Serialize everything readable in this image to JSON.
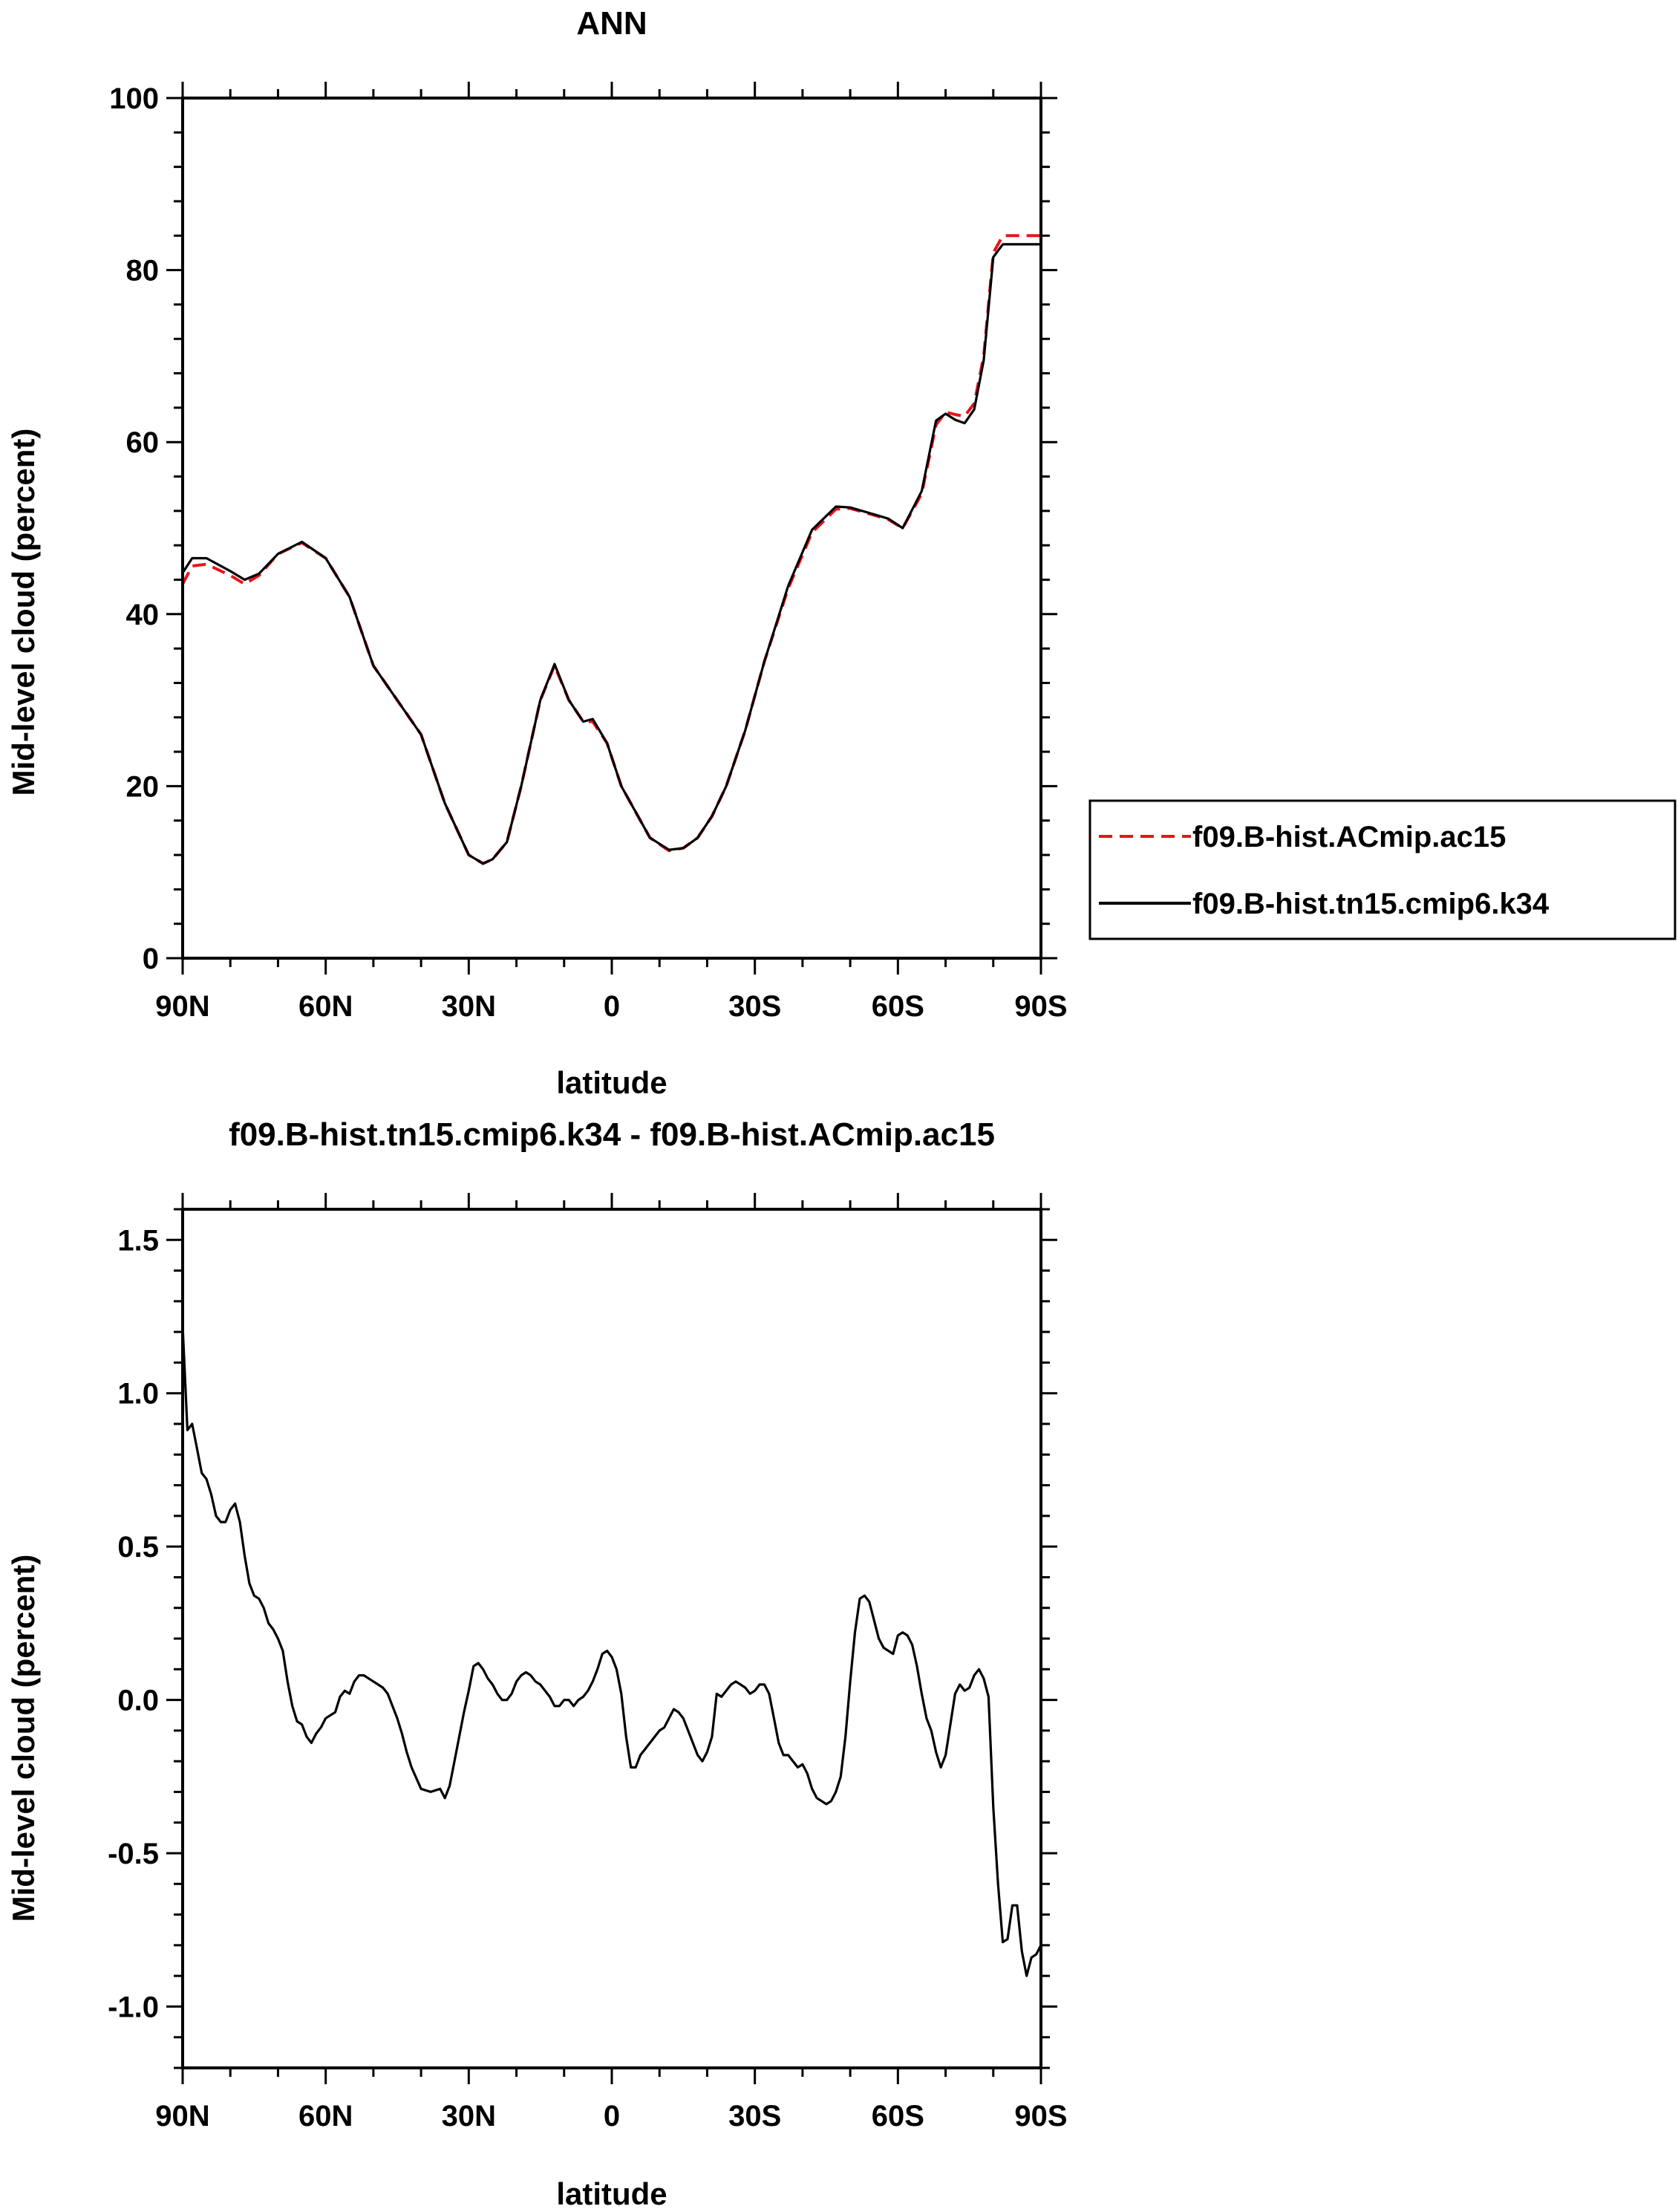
{
  "chart_data": [
    {
      "type": "line",
      "title": "ANN",
      "xlabel": "latitude",
      "ylabel": "Mid-level cloud (percent)",
      "xlim": [
        90,
        -90
      ],
      "ylim": [
        0,
        100
      ],
      "x_ticks": [
        {
          "value": 90,
          "label": "90N"
        },
        {
          "value": 60,
          "label": "60N"
        },
        {
          "value": 30,
          "label": "30N"
        },
        {
          "value": 0,
          "label": "0"
        },
        {
          "value": -30,
          "label": "30S"
        },
        {
          "value": -60,
          "label": "60S"
        },
        {
          "value": -90,
          "label": "90S"
        }
      ],
      "y_ticks": [
        {
          "value": 0,
          "label": "0"
        },
        {
          "value": 20,
          "label": "20"
        },
        {
          "value": 40,
          "label": "40"
        },
        {
          "value": 60,
          "label": "60"
        },
        {
          "value": 80,
          "label": "80"
        },
        {
          "value": 100,
          "label": "100"
        }
      ],
      "series": [
        {
          "name": "f09.B-hist.ACmip.ac15",
          "color": "#e8141b",
          "dash": "dashed",
          "x": [
            90,
            88,
            85,
            80,
            77,
            74,
            70,
            65,
            60,
            55,
            50,
            45,
            40,
            35,
            30,
            27,
            25,
            22,
            19,
            15,
            12,
            9,
            6,
            4,
            1,
            -2,
            -5,
            -8,
            -12,
            -15,
            -18,
            -21,
            -24,
            -28,
            -32,
            -37,
            -42,
            -47,
            -50,
            -55,
            -58,
            -61,
            -65,
            -68,
            -70,
            -72,
            -74,
            -76,
            -78,
            -80,
            -82,
            -84,
            -86,
            -88,
            -90
          ],
          "values": [
            43.5,
            45.6,
            45.8,
            44.5,
            43.5,
            44.5,
            47,
            48.3,
            46.5,
            42,
            34,
            30,
            26,
            18,
            12,
            11,
            11.5,
            13.5,
            20,
            30,
            34,
            30,
            27.5,
            27.5,
            25,
            20,
            17,
            14,
            12.5,
            12.8,
            14,
            16.5,
            20,
            26.5,
            34.5,
            43,
            49.5,
            52.2,
            52.3,
            51.5,
            51,
            50,
            54,
            62,
            63.5,
            63.2,
            63,
            64.5,
            70,
            82,
            84,
            84,
            84,
            84,
            84
          ]
        },
        {
          "name": "f09.B-hist.tn15.cmip6.k34",
          "color": "#000000",
          "dash": "solid",
          "x": [
            90,
            88,
            85,
            80,
            77,
            74,
            70,
            65,
            60,
            55,
            50,
            45,
            40,
            35,
            30,
            27,
            25,
            22,
            19,
            15,
            12,
            9,
            6,
            4,
            1,
            -2,
            -5,
            -8,
            -12,
            -15,
            -18,
            -21,
            -24,
            -28,
            -32,
            -37,
            -42,
            -47,
            -50,
            -55,
            -58,
            -61,
            -65,
            -68,
            -70,
            -72,
            -74,
            -76,
            -78,
            -80,
            -82,
            -84,
            -86,
            -88,
            -90
          ],
          "values": [
            44.8,
            46.5,
            46.5,
            45,
            44,
            44.7,
            47,
            48.4,
            46.5,
            42,
            34,
            30,
            26,
            18,
            12,
            11,
            11.5,
            13.5,
            20,
            30,
            34.2,
            30,
            27.5,
            27.8,
            25,
            20,
            17,
            14,
            12.6,
            12.8,
            14,
            16.5,
            20,
            26.5,
            34.5,
            43.3,
            49.8,
            52.5,
            52.4,
            51.6,
            51.1,
            50,
            54.3,
            62.5,
            63.3,
            62.6,
            62.2,
            63.8,
            69.5,
            81.5,
            83,
            83,
            83,
            83,
            83
          ]
        }
      ],
      "legend": {
        "placement": "right",
        "entries": [
          "f09.B-hist.ACmip.ac15",
          "f09.B-hist.tn15.cmip6.k34"
        ]
      }
    },
    {
      "type": "line",
      "title": "f09.B-hist.tn15.cmip6.k34 - f09.B-hist.ACmip.ac15",
      "xlabel": "latitude",
      "ylabel": "Mid-level cloud (percent)",
      "xlim": [
        90,
        -90
      ],
      "ylim": [
        -1.2,
        1.6
      ],
      "x_ticks": [
        {
          "value": 90,
          "label": "90N"
        },
        {
          "value": 60,
          "label": "60N"
        },
        {
          "value": 30,
          "label": "30N"
        },
        {
          "value": 0,
          "label": "0"
        },
        {
          "value": -30,
          "label": "30S"
        },
        {
          "value": -60,
          "label": "60S"
        },
        {
          "value": -90,
          "label": "90S"
        }
      ],
      "y_ticks": [
        {
          "value": -1.0,
          "label": "-1.0"
        },
        {
          "value": -0.5,
          "label": "-0.5"
        },
        {
          "value": 0.0,
          "label": "0.0"
        },
        {
          "value": 0.5,
          "label": "0.5"
        },
        {
          "value": 1.0,
          "label": "1.0"
        },
        {
          "value": 1.5,
          "label": "1.5"
        }
      ],
      "series": [
        {
          "name": "f09.B-hist.tn15.cmip6.k34 - f09.B-hist.ACmip.ac15",
          "color": "#000000",
          "dash": "solid",
          "x": [
            90,
            89.5,
            89,
            88,
            87,
            86,
            85,
            84,
            83,
            82,
            81,
            80,
            79,
            78,
            77,
            76,
            75,
            74,
            73,
            72,
            71,
            70,
            69,
            68,
            67,
            66,
            65,
            64,
            63,
            62,
            61,
            60,
            59,
            58,
            57,
            56,
            55,
            54,
            53,
            52,
            51,
            50,
            49,
            48,
            47,
            46,
            45,
            44,
            43,
            42,
            40,
            38,
            36,
            35,
            34,
            33,
            32,
            31,
            30,
            29,
            28,
            27,
            26,
            25,
            24,
            23,
            22,
            21,
            20,
            19,
            18,
            17,
            16,
            15,
            14,
            13,
            12,
            11,
            10,
            9,
            8,
            7,
            6,
            5,
            4,
            3,
            2,
            1,
            0,
            -1,
            -2,
            -3,
            -4,
            -5,
            -6,
            -7,
            -8,
            -9,
            -10,
            -11,
            -12,
            -13,
            -14,
            -15,
            -16,
            -17,
            -18,
            -19,
            -20,
            -21,
            -22,
            -23,
            -24,
            -25,
            -26,
            -27,
            -28,
            -29,
            -30,
            -31,
            -32,
            -33,
            -34,
            -35,
            -36,
            -37,
            -38,
            -39,
            -40,
            -41,
            -42,
            -43,
            -44,
            -45,
            -46,
            -47,
            -48,
            -49,
            -50,
            -51,
            -52,
            -53,
            -54,
            -55,
            -56,
            -57,
            -58,
            -59,
            -60,
            -61,
            -62,
            -63,
            -64,
            -65,
            -66,
            -67,
            -68,
            -69,
            -70,
            -71,
            -72,
            -73,
            -74,
            -75,
            -76,
            -77,
            -78,
            -79,
            -80,
            -81,
            -82,
            -83,
            -84,
            -85,
            -86,
            -87,
            -88,
            -89,
            -90
          ],
          "values": [
            1.22,
            1.05,
            0.88,
            0.9,
            0.82,
            0.74,
            0.72,
            0.67,
            0.6,
            0.58,
            0.58,
            0.62,
            0.64,
            0.58,
            0.47,
            0.38,
            0.34,
            0.33,
            0.3,
            0.25,
            0.23,
            0.2,
            0.16,
            0.06,
            -0.02,
            -0.07,
            -0.08,
            -0.12,
            -0.14,
            -0.11,
            -0.09,
            -0.06,
            -0.05,
            -0.04,
            0.01,
            0.03,
            0.02,
            0.06,
            0.08,
            0.08,
            0.07,
            0.06,
            0.05,
            0.04,
            0.02,
            -0.02,
            -0.06,
            -0.11,
            -0.17,
            -0.22,
            -0.29,
            -0.3,
            -0.29,
            -0.32,
            -0.28,
            -0.2,
            -0.12,
            -0.04,
            0.03,
            0.11,
            0.12,
            0.1,
            0.07,
            0.05,
            0.02,
            0,
            0,
            0.02,
            0.06,
            0.08,
            0.09,
            0.08,
            0.06,
            0.05,
            0.03,
            0.01,
            -0.02,
            -0.02,
            0,
            0,
            -0.02,
            0,
            0.01,
            0.03,
            0.06,
            0.1,
            0.15,
            0.16,
            0.14,
            0.1,
            0.02,
            -0.12,
            -0.22,
            -0.22,
            -0.18,
            -0.16,
            -0.14,
            -0.12,
            -0.1,
            -0.09,
            -0.06,
            -0.03,
            -0.04,
            -0.06,
            -0.1,
            -0.14,
            -0.18,
            -0.2,
            -0.17,
            -0.12,
            0.02,
            0.01,
            0.03,
            0.05,
            0.06,
            0.05,
            0.04,
            0.02,
            0.03,
            0.05,
            0.05,
            0.02,
            -0.06,
            -0.14,
            -0.18,
            -0.18,
            -0.2,
            -0.22,
            -0.21,
            -0.24,
            -0.29,
            -0.32,
            -0.33,
            -0.34,
            -0.33,
            -0.3,
            -0.25,
            -0.12,
            0.06,
            0.22,
            0.33,
            0.34,
            0.32,
            0.26,
            0.2,
            0.17,
            0.16,
            0.15,
            0.21,
            0.22,
            0.21,
            0.18,
            0.11,
            0.02,
            -0.06,
            -0.1,
            -0.17,
            -0.22,
            -0.18,
            -0.08,
            0.02,
            0.05,
            0.03,
            0.04,
            0.08,
            0.1,
            0.07,
            0.01,
            -0.35,
            -0.6,
            -0.79,
            -0.78,
            -0.67,
            -0.67,
            -0.82,
            -0.9,
            -0.84,
            -0.83,
            -0.8
          ]
        }
      ]
    }
  ]
}
